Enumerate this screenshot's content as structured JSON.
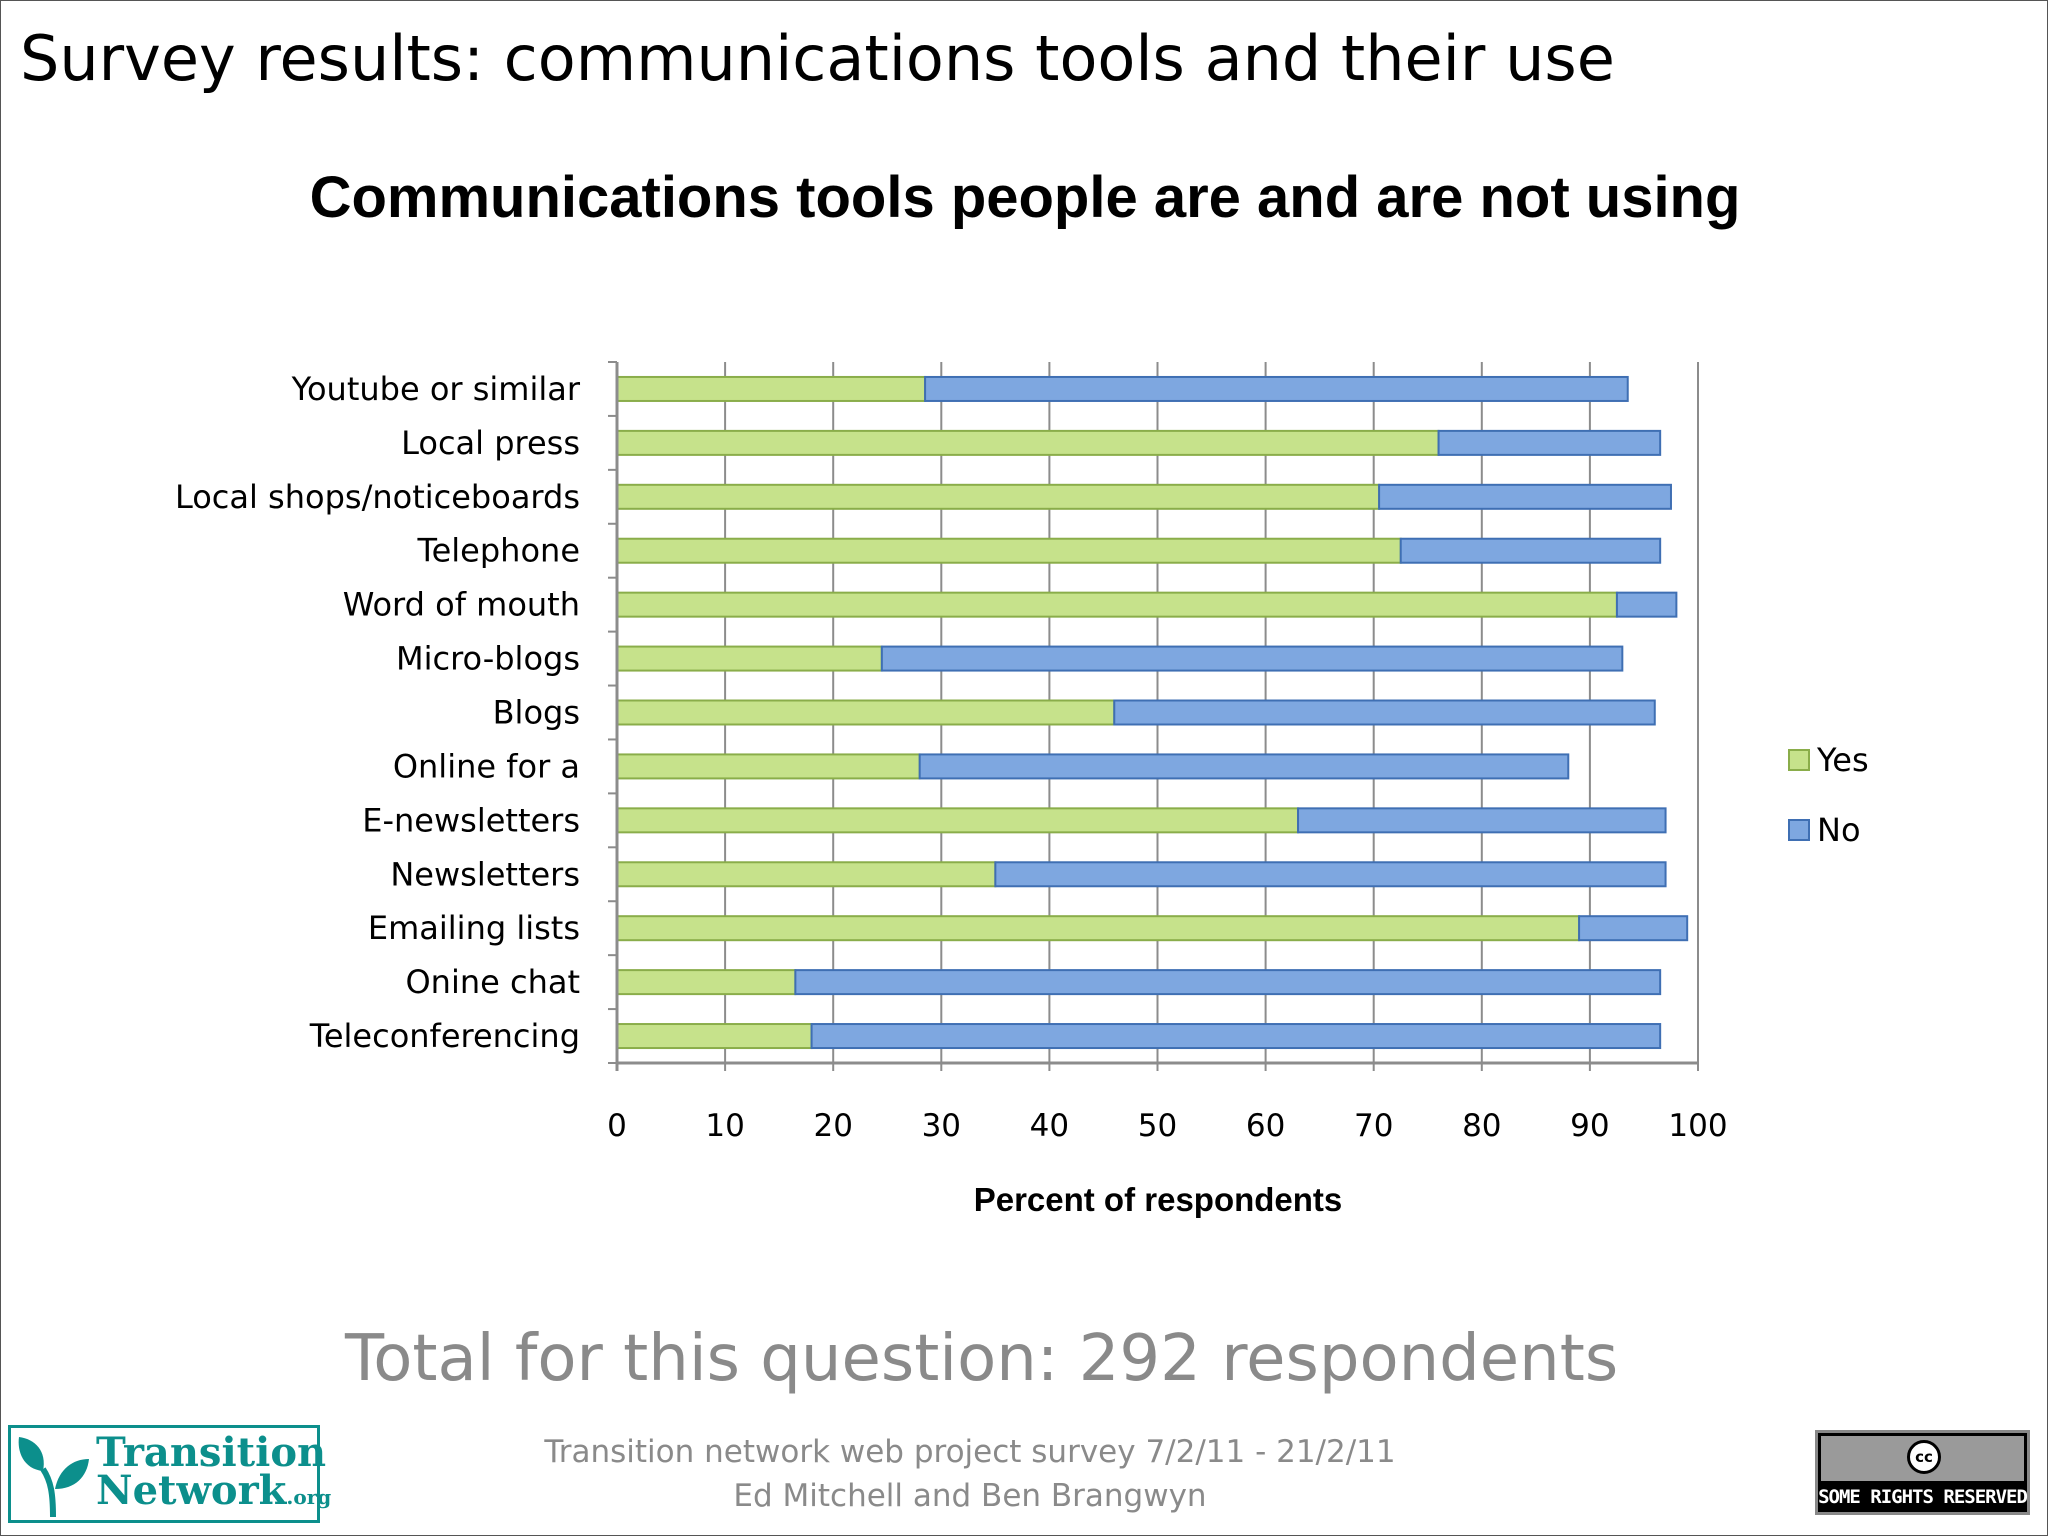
{
  "slide": {
    "title": "Survey results: communications tools and their use",
    "total_line": "Total for this question: 292 respondents",
    "footer_line1": "Transition network web project survey 7/2/11 - 21/2/11",
    "footer_line2": "Ed Mitchell and Ben Brangwyn"
  },
  "logo": {
    "line1": "Transition",
    "line2": "Network",
    "suffix": ".org"
  },
  "license_badge": {
    "symbol": "cc",
    "text": "SOME RIGHTS RESERVED"
  },
  "chart_data": {
    "type": "bar",
    "orientation": "horizontal",
    "stacked": true,
    "title": "Communications tools people are and are not using",
    "xlabel": "Percent of respondents",
    "ylabel": "",
    "xlim": [
      0,
      100
    ],
    "xticks": [
      0,
      10,
      20,
      30,
      40,
      50,
      60,
      70,
      80,
      90,
      100
    ],
    "grid": true,
    "legend_position": "right",
    "categories": [
      "Youtube or similar",
      "Local press",
      "Local shops/noticeboards",
      "Telephone",
      "Word of mouth",
      "Micro-blogs",
      "Blogs",
      "Online for a",
      "E-newsletters",
      "Newsletters",
      "Emailing lists",
      "Onine chat",
      "Teleconferencing"
    ],
    "series": [
      {
        "name": "Yes",
        "color": "#c6e28b",
        "values": [
          28.5,
          76,
          70.5,
          72.5,
          92.5,
          24.5,
          46,
          28,
          63,
          35,
          89,
          16.5,
          18
        ]
      },
      {
        "name": "No",
        "color": "#7ea7e0",
        "values": [
          65,
          20.5,
          27,
          24,
          5.5,
          68.5,
          50,
          60,
          34,
          62,
          10,
          80,
          78.5
        ]
      }
    ]
  }
}
